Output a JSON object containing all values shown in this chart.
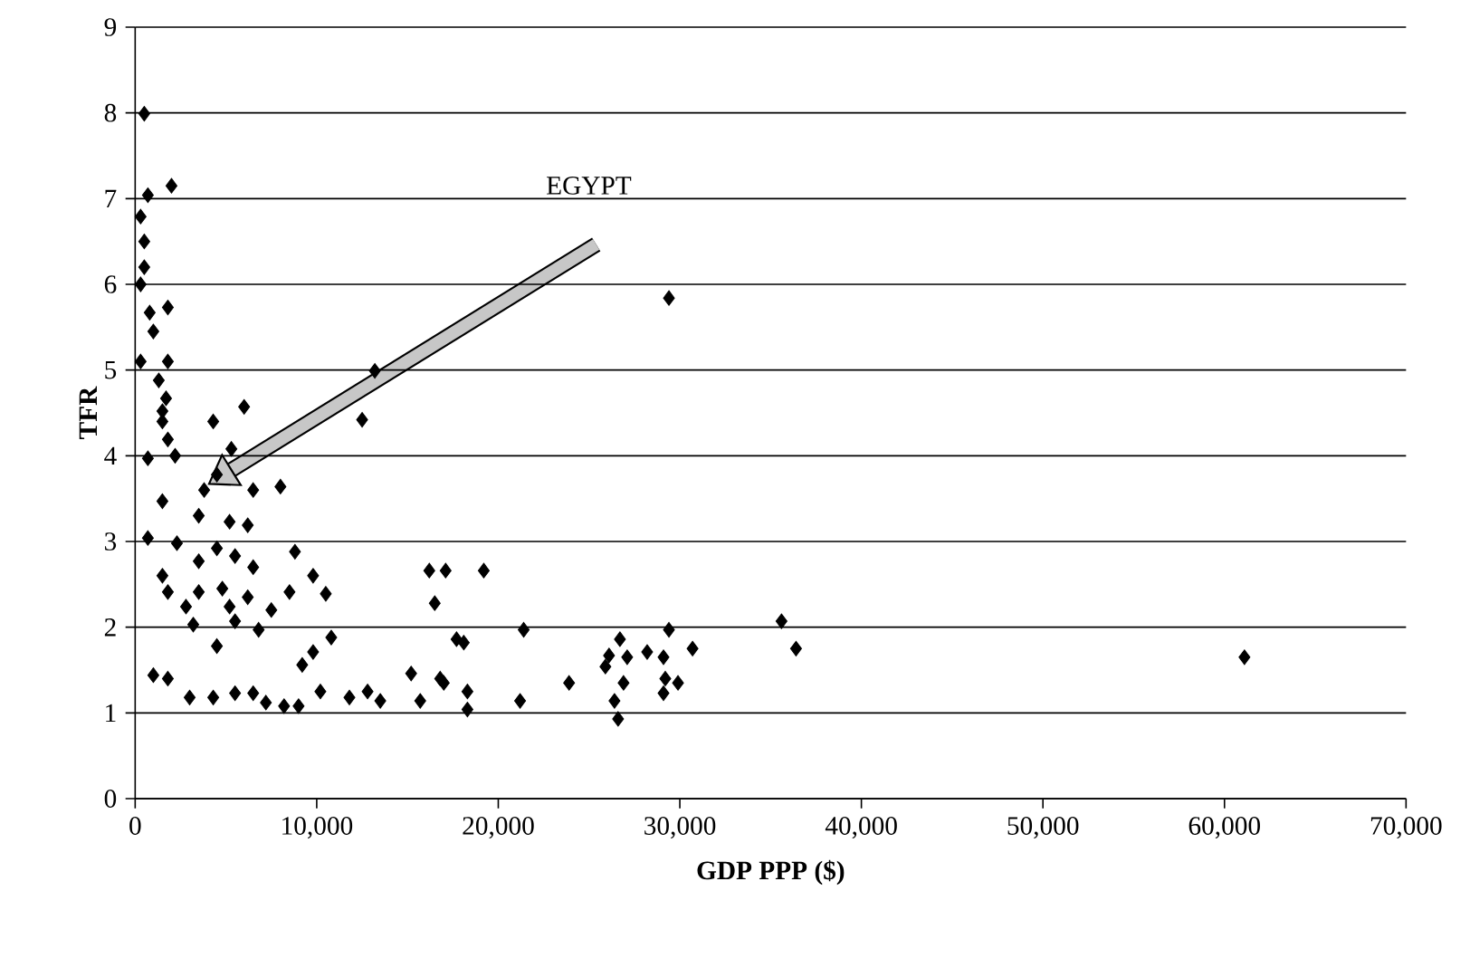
{
  "chart_data": {
    "type": "scatter",
    "xlabel": "GDP PPP ($)",
    "ylabel": "TFR",
    "xlim": [
      0,
      70000
    ],
    "ylim": [
      0,
      9
    ],
    "xticks": [
      0,
      {
        "value": 10000,
        "label": "10,000"
      },
      {
        "value": 20000,
        "label": "20,000"
      },
      {
        "value": 30000,
        "label": "30,000"
      },
      {
        "value": 40000,
        "label": "40,000"
      },
      {
        "value": 50000,
        "label": "50,000"
      },
      {
        "value": 60000,
        "label": "60,000"
      },
      {
        "value": 70000,
        "label": "70,000"
      }
    ],
    "yticks": [
      0,
      1,
      2,
      3,
      4,
      5,
      6,
      7,
      8,
      9
    ],
    "grid": "y",
    "marker": "diamond",
    "annotations": [
      "EGYPT"
    ],
    "series": [
      {
        "color": "#000000",
        "x": [
          500,
          700,
          2000,
          300,
          500,
          500,
          300,
          800,
          1800,
          1000,
          300,
          1800,
          1300,
          1700,
          1500,
          1500,
          4300,
          6000,
          12500,
          13200,
          1800,
          700,
          2200,
          5300,
          4500,
          3800,
          6500,
          8000,
          1500,
          3500,
          5200,
          6200,
          700,
          2300,
          4500,
          5500,
          8800,
          3500,
          6500,
          16200,
          17100,
          1500,
          9800,
          1800,
          3500,
          4800,
          6200,
          8500,
          10500,
          16500,
          2800,
          5200,
          7500,
          3200,
          5500,
          6800,
          10800,
          4500,
          9800,
          9200,
          18100,
          15200,
          16800,
          1000,
          1800,
          3000,
          4300,
          5500,
          6500,
          7200,
          8200,
          9000,
          10200,
          11800,
          12800,
          13500,
          15700,
          29400,
          19200,
          17700,
          21400,
          17000,
          18300,
          18300,
          21200,
          23900,
          26700,
          26100,
          27100,
          25900,
          26900,
          26400,
          26600,
          28200,
          29100,
          29400,
          30700,
          29200,
          29900,
          29100,
          35600,
          36400,
          61100
        ],
        "values": [
          7.99,
          7.04,
          7.15,
          6.79,
          6.5,
          6.2,
          6.0,
          5.67,
          5.73,
          5.45,
          5.1,
          5.1,
          4.88,
          4.67,
          4.4,
          4.52,
          4.4,
          4.57,
          4.42,
          4.99,
          4.19,
          3.97,
          4.0,
          4.08,
          3.78,
          3.6,
          3.6,
          3.64,
          3.47,
          3.3,
          3.23,
          3.19,
          3.04,
          2.98,
          2.92,
          2.83,
          2.88,
          2.77,
          2.7,
          2.66,
          2.66,
          2.6,
          2.6,
          2.41,
          2.41,
          2.45,
          2.35,
          2.41,
          2.39,
          2.28,
          2.24,
          2.24,
          2.2,
          2.03,
          2.07,
          1.97,
          1.88,
          1.78,
          1.71,
          1.56,
          1.82,
          1.46,
          1.4,
          1.44,
          1.4,
          1.18,
          1.18,
          1.23,
          1.23,
          1.12,
          1.08,
          1.08,
          1.25,
          1.18,
          1.25,
          1.14,
          1.14,
          5.84,
          2.66,
          1.86,
          1.97,
          1.35,
          1.25,
          1.04,
          1.14,
          1.35,
          1.86,
          1.67,
          1.65,
          1.54,
          1.35,
          1.14,
          0.93,
          1.71,
          1.65,
          1.97,
          1.75,
          1.4,
          1.35,
          1.23,
          2.07,
          1.75,
          1.65
        ]
      }
    ]
  }
}
